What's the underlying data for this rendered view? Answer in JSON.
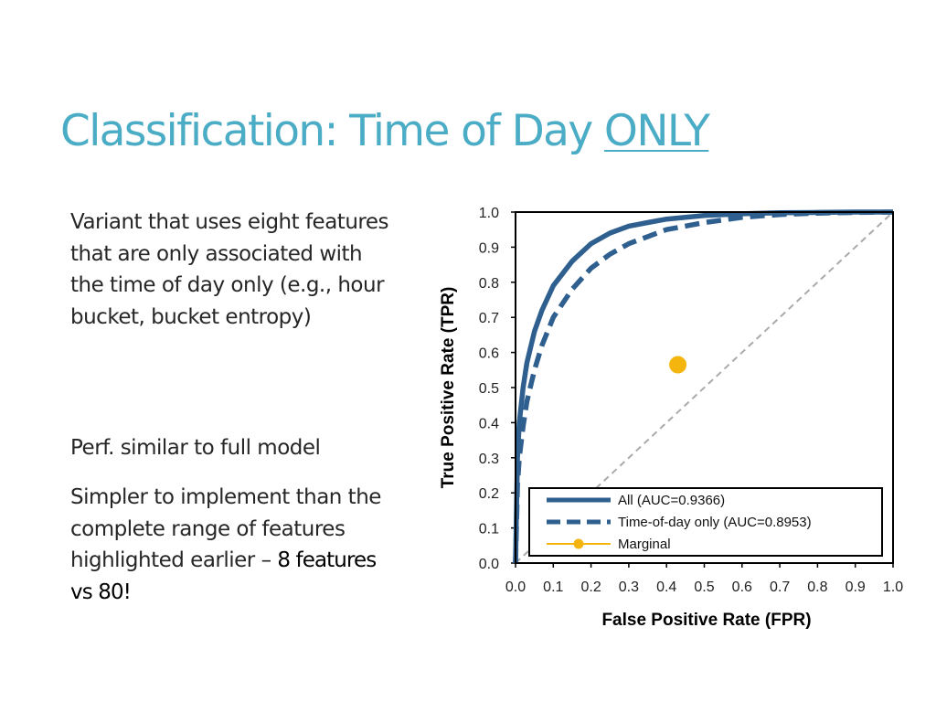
{
  "slide": {
    "title_main": "Classification: Time of Day ",
    "title_emph": "ONLY",
    "paragraph_1": "Variant that uses eight features that are only associated with the time of day only (e.g., hour bucket, bucket entropy)",
    "paragraph_2": "Perf. similar to full model",
    "paragraph_3_main": "Simpler to implement than the complete range of features highlighted earlier – ",
    "paragraph_3_emph": "8 features vs 80!"
  },
  "chart_data": {
    "type": "line",
    "xlabel": "False Positive Rate (FPR)",
    "ylabel": "True Positive Rate (TPR)",
    "xlim": [
      0,
      1
    ],
    "ylim": [
      0,
      1
    ],
    "xticks": [
      "0.0",
      "0.1",
      "0.2",
      "0.3",
      "0.4",
      "0.5",
      "0.6",
      "0.7",
      "0.8",
      "0.9",
      "1.0"
    ],
    "yticks": [
      "0.0",
      "0.1",
      "0.2",
      "0.3",
      "0.4",
      "0.5",
      "0.6",
      "0.7",
      "0.8",
      "0.9",
      "1.0"
    ],
    "grid": false,
    "legend_position": "bottom-right",
    "series": [
      {
        "name": "All (AUC=0.9366)",
        "style": "solid",
        "color": "#2e5f8e",
        "x": [
          0,
          0.005,
          0.01,
          0.02,
          0.03,
          0.05,
          0.07,
          0.1,
          0.15,
          0.2,
          0.25,
          0.3,
          0.35,
          0.4,
          0.5,
          0.6,
          0.7,
          0.8,
          0.9,
          1.0
        ],
        "y": [
          0,
          0.3,
          0.4,
          0.5,
          0.57,
          0.66,
          0.72,
          0.79,
          0.86,
          0.91,
          0.94,
          0.96,
          0.97,
          0.98,
          0.99,
          0.995,
          0.998,
          0.999,
          1.0,
          1.0
        ]
      },
      {
        "name": "Time-of-day only (AUC=0.8953)",
        "style": "dashed",
        "color": "#2e5f8e",
        "x": [
          0,
          0.005,
          0.01,
          0.02,
          0.03,
          0.05,
          0.07,
          0.1,
          0.15,
          0.2,
          0.25,
          0.3,
          0.35,
          0.4,
          0.5,
          0.6,
          0.7,
          0.8,
          0.9,
          1.0
        ],
        "y": [
          0,
          0.22,
          0.3,
          0.39,
          0.46,
          0.55,
          0.62,
          0.7,
          0.78,
          0.84,
          0.88,
          0.91,
          0.93,
          0.95,
          0.97,
          0.985,
          0.993,
          0.997,
          0.999,
          1.0
        ]
      },
      {
        "name": "Marginal",
        "style": "marker",
        "color": "#f5b50f",
        "x": [
          0.43
        ],
        "y": [
          0.565
        ]
      }
    ],
    "reference_line": {
      "style": "dashed",
      "color": "#aaaaaa",
      "x": [
        0,
        1
      ],
      "y": [
        0,
        1
      ]
    }
  }
}
